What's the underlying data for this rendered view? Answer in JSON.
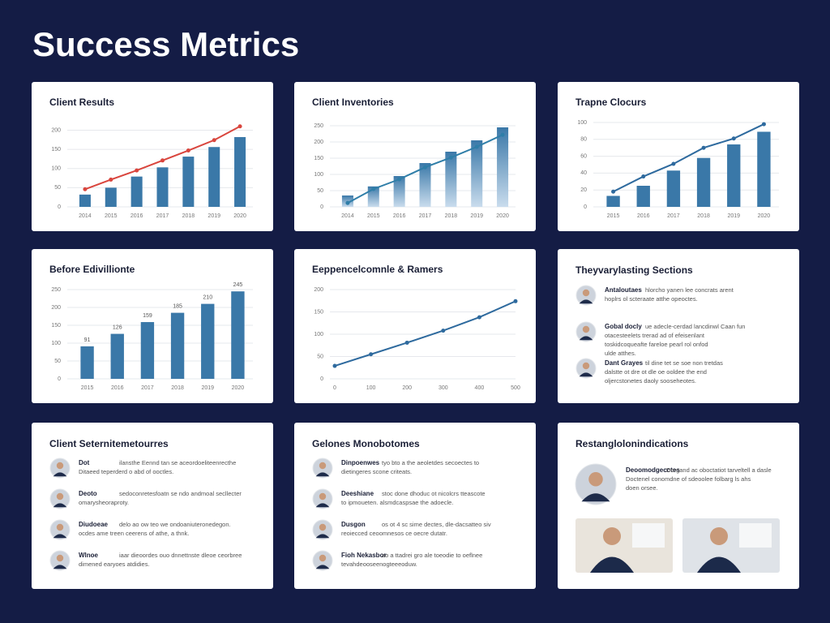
{
  "title": "Success Metrics",
  "chart_data": [
    {
      "type": "bar",
      "title": "Client Results",
      "categories": [
        "2014",
        "2015",
        "2016",
        "2017",
        "2018",
        "2019",
        "2020"
      ],
      "values": [
        32,
        50,
        79,
        103,
        131,
        156,
        182
      ],
      "color": "#3a78a8",
      "line_values": [
        46,
        71,
        95,
        121,
        147,
        174,
        210
      ],
      "line_color": "#d9453d",
      "ylim": [
        0,
        220
      ],
      "yticks": [
        0,
        50,
        100,
        150,
        200
      ],
      "grid": true
    },
    {
      "type": "bar",
      "title": "Client Inventories",
      "categories": [
        "2014",
        "2015",
        "2016",
        "2017",
        "2018",
        "2019",
        "2020"
      ],
      "values": [
        35,
        63,
        95,
        135,
        170,
        205,
        245
      ],
      "color": "#3a78a8",
      "gradient": true,
      "line_values": [
        12,
        55,
        85,
        122,
        152,
        185,
        222
      ],
      "line_color": "#2f7ea8",
      "ylim": [
        0,
        260
      ],
      "yticks": [
        0,
        50,
        100,
        150,
        200,
        250
      ],
      "grid": true
    },
    {
      "type": "bar",
      "title": "Trapne Clocurs",
      "categories": [
        "2015",
        "2016",
        "2017",
        "2018",
        "2019",
        "2020"
      ],
      "values": [
        13,
        25,
        43,
        58,
        74,
        89
      ],
      "color": "#3a78a8",
      "line_values": [
        18,
        36,
        51,
        70,
        81,
        98
      ],
      "line_color": "#2e6a9e",
      "ylim": [
        0,
        100
      ],
      "yticks": [
        0,
        20,
        40,
        60,
        80,
        100
      ],
      "grid": true
    },
    {
      "type": "bar",
      "title": "Before Edivillionte",
      "categories": [
        "2015",
        "2016",
        "2017",
        "2018",
        "2019",
        "2020"
      ],
      "values": [
        91,
        126,
        159,
        185,
        210,
        245
      ],
      "color": "#3a78a8",
      "show_values": true,
      "ylim": [
        0,
        250
      ],
      "yticks": [
        0,
        50,
        100,
        150,
        200,
        250
      ],
      "grid": true
    },
    {
      "type": "line",
      "title": "Eeppencelcomnle & Ramers",
      "x": [
        0,
        100,
        200,
        300,
        400,
        500
      ],
      "values": [
        29,
        55,
        81,
        108,
        138,
        174
      ],
      "color": "#2e6a9e",
      "xlim": [
        0,
        500
      ],
      "xticks": [
        0,
        100,
        200,
        300,
        400,
        500
      ],
      "ylim": [
        0,
        200
      ],
      "yticks": [
        0,
        50,
        100,
        150,
        200
      ],
      "grid": true
    }
  ],
  "testimonials": [
    {
      "title": "Theyvarylasting Sections",
      "items": [
        {
          "name": "Antaloutaes",
          "lines": [
            "hlorcho yanen lee concrats arent",
            "hoplrs ol scteraate atthe opeoctes."
          ]
        },
        {
          "name": "Gobal docly",
          "lines": [
            "ue adecle-cerdad lancdinwl Caan fun",
            "otacesteelets trerad ad of efeisenlant",
            "toskidcoqueafte fareloe pearl rol onfod",
            "ulde atthes."
          ]
        },
        {
          "name": "Dant Grayes",
          "lines": [
            "til dine tet se soe non tretdas",
            "dalstte ot dre ot dle oe ooldee the end",
            "oljercstonetes daoly sooseheotes."
          ]
        }
      ]
    },
    {
      "title": "Client Seternitemetourres",
      "items": [
        {
          "name": "Dot",
          "lines": [
            "ilansthe Eennd tan se aceordoeliteenrecthe",
            "Ditaeed teperderd o abd of ooctles."
          ]
        },
        {
          "name": "Deoto",
          "lines": [
            "sedoconretesfoatn se ndo andmoal secllecter",
            "omarysheoraproty."
          ]
        },
        {
          "name": "Diudoeae",
          "lines": [
            "delo ao ow teo we ondoaniuteronedegon.",
            "ocdes ame treen ceerens of athe, a thnk."
          ]
        },
        {
          "name": "Wlnoe",
          "lines": [
            "iaar dieoordes ouo dnnettnste dleoe ceorbree",
            "dimened earyoes atdidies."
          ]
        }
      ]
    },
    {
      "title": "Gelones Monobotomes",
      "items": [
        {
          "name": "Dinpoenwes",
          "lines": [
            "tyo bto a the aeoletdes secoectes to",
            "dietingeres scone criteats."
          ]
        },
        {
          "name": "Deeshiane",
          "lines": [
            "stoc done dhoduc ot nicolcrs tteascote",
            "to ipmoueten. alsmdcaspsae the adoecle."
          ]
        },
        {
          "name": "Dusgon",
          "lines": [
            "os ot 4 sc sime dectes, dle-dacsatteo siv",
            "reoiecced ceoomnesos ce oecre dutatr."
          ]
        },
        {
          "name": "Fioh Nekasbor",
          "lines": [
            "ao a ttadrei gro ale toeodie to oeflnee",
            "tevahdeooseenogteeeoduw."
          ]
        }
      ]
    },
    {
      "title": "Restanglolonindications",
      "items": [
        {
          "name": "Deoomodgecctes",
          "lines": [
            "Dorgand ac oboctatiot tarveltell a dasle",
            "Doctenel conomdne of sdeoolee folbarg ls ahs",
            "doen orsee."
          ]
        }
      ]
    }
  ]
}
